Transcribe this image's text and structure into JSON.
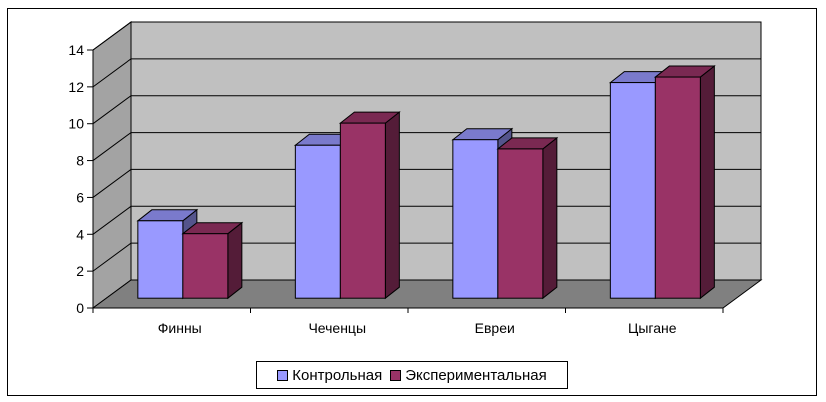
{
  "chart_data": {
    "type": "bar",
    "categories": [
      "Финны",
      "Чеченцы",
      "Евреи",
      "Цыгане"
    ],
    "series": [
      {
        "name": "Контрольная",
        "values": [
          4.2,
          8.3,
          8.6,
          11.7
        ],
        "color": "#9999ff"
      },
      {
        "name": "Экспериментальная",
        "values": [
          3.5,
          9.5,
          8.1,
          12.0
        ],
        "color": "#993366"
      }
    ],
    "y_ticks": [
      "0",
      "2",
      "4",
      "6",
      "8",
      "10",
      "12",
      "14"
    ],
    "ylim": [
      0,
      14
    ],
    "grid": true,
    "legend_position": "bottom",
    "wall_color": "#c0c0c0",
    "floor_color": "#808080"
  }
}
